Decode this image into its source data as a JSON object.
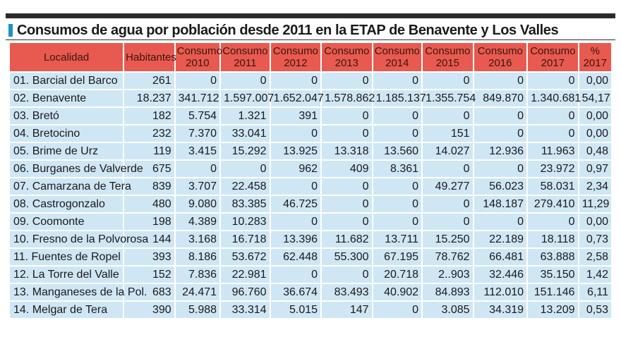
{
  "title": "Consumos de agua por población desde 2011 en la ETAP de Benavente y Los Valles",
  "headers": {
    "localidad": "Localidad",
    "habitantes": "Habitantes",
    "c2010": [
      "Consumo",
      "2010"
    ],
    "c2011": [
      "Consumo",
      "2011"
    ],
    "c2012": [
      "Consumo",
      "2012"
    ],
    "c2013": [
      "Consumo",
      "2013"
    ],
    "c2014": [
      "Consumo",
      "2014"
    ],
    "c2015": [
      "Consumo",
      "2015"
    ],
    "c2016": [
      "Consumo",
      "2016"
    ],
    "c2017": [
      "Consumo",
      "2017"
    ],
    "pct": [
      "%",
      "2017"
    ]
  },
  "rows": [
    [
      "01. Barcial del Barco",
      "261",
      "0",
      "0",
      "0",
      "0",
      "0",
      "0",
      "0",
      "0",
      "0,00"
    ],
    [
      "02. Benavente",
      "18.237",
      "341.712",
      "1.597.007",
      "1.652.047",
      "1.578.862",
      "1.185.137",
      "1.355.754",
      "849.870",
      "1.340.681",
      "54,17"
    ],
    [
      "03. Bretó",
      "182",
      "5.754",
      "1.321",
      "391",
      "0",
      "0",
      "0",
      "0",
      "0",
      "0,00"
    ],
    [
      "04. Bretocino",
      "232",
      "7.370",
      "33.041",
      "0",
      "0",
      "0",
      "151",
      "0",
      "0",
      "0,00"
    ],
    [
      "05. Brime de Urz",
      "119",
      "3.415",
      "15.292",
      "13.925",
      "13.318",
      "13.560",
      "14.027",
      "12.936",
      "11.963",
      "0,48"
    ],
    [
      "06. Burganes de Valverde",
      "675",
      "0",
      "0",
      "962",
      "409",
      "8.361",
      "0",
      "0",
      "23.972",
      "0,97"
    ],
    [
      "07. Camarzana de Tera",
      "839",
      "3.707",
      "22.458",
      "0",
      "0",
      "0",
      "49.277",
      "56.023",
      "58.031",
      "2,34"
    ],
    [
      "08. Castrogonzalo",
      "480",
      "9.080",
      "83.385",
      "46.725",
      "0",
      "0",
      "0",
      "148.187",
      "279.410",
      "11,29"
    ],
    [
      "09. Coomonte",
      "198",
      "4.389",
      "10.283",
      "0",
      "0",
      "0",
      "0",
      "0",
      "0",
      "0,00"
    ],
    [
      "10. Fresno de la Polvorosa",
      "144",
      "3.168",
      "16.718",
      "13.396",
      "11.682",
      "13.711",
      "15.250",
      "22.189",
      "18.118",
      "0,73"
    ],
    [
      "11. Fuentes de Ropel",
      "393",
      "8.186",
      "53.672",
      "62.448",
      "55.300",
      "67.195",
      "78.762",
      "66.481",
      "63.888",
      "2,58"
    ],
    [
      "12. La Torre del Valle",
      "152",
      "7.836",
      "22.981",
      "0",
      "0",
      "20.718",
      "2..903",
      "32.446",
      "35.150",
      "1,42"
    ],
    [
      "13. Manganeses de la Pol.",
      "683",
      "24.471",
      "96.760",
      "36.674",
      "83.493",
      "40.902",
      "84.893",
      "112.010",
      "151.146",
      "6,11"
    ],
    [
      "14. Melgar de Tera",
      "390",
      "5.988",
      "33.314",
      "5.015",
      "147",
      "0",
      "3.085",
      "34.319",
      "13.209",
      "0,53"
    ]
  ]
}
